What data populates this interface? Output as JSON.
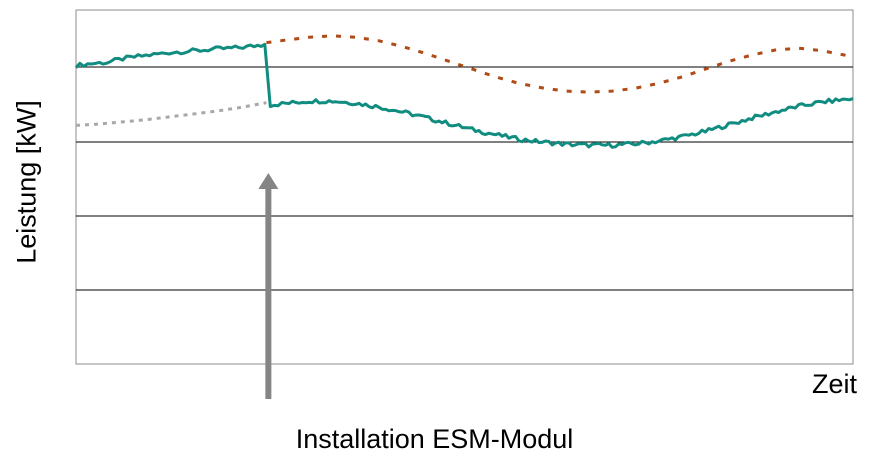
{
  "chart_data": {
    "type": "line",
    "title": "",
    "xlabel": "Zeit",
    "ylabel": "Leistung [kW]",
    "annotation": "Installation ESM-Modul",
    "annotation_x": 0.245,
    "grid": true,
    "xlim": [
      0,
      1
    ],
    "ylim": [
      0,
      1
    ],
    "colors": {
      "measured": "#118c80",
      "baseline_before": "#a8a8a8",
      "baseline_after": "#b04a16",
      "arrow": "#858585",
      "grid": "#000000"
    },
    "series": [
      {
        "key": "measured",
        "style": "solid",
        "points": [
          [
            0.0,
            0.843
          ],
          [
            0.02,
            0.849
          ],
          [
            0.04,
            0.852
          ],
          [
            0.06,
            0.862
          ],
          [
            0.08,
            0.869
          ],
          [
            0.1,
            0.874
          ],
          [
            0.12,
            0.88
          ],
          [
            0.14,
            0.883
          ],
          [
            0.16,
            0.886
          ],
          [
            0.18,
            0.89
          ],
          [
            0.2,
            0.892
          ],
          [
            0.22,
            0.896
          ],
          [
            0.243,
            0.903
          ],
          [
            0.25,
            0.732
          ],
          [
            0.27,
            0.736
          ],
          [
            0.3,
            0.743
          ],
          [
            0.33,
            0.743
          ],
          [
            0.36,
            0.737
          ],
          [
            0.39,
            0.726
          ],
          [
            0.42,
            0.712
          ],
          [
            0.45,
            0.696
          ],
          [
            0.48,
            0.679
          ],
          [
            0.51,
            0.662
          ],
          [
            0.54,
            0.648
          ],
          [
            0.57,
            0.635
          ],
          [
            0.6,
            0.627
          ],
          [
            0.63,
            0.621
          ],
          [
            0.66,
            0.618
          ],
          [
            0.69,
            0.618
          ],
          [
            0.72,
            0.622
          ],
          [
            0.75,
            0.63
          ],
          [
            0.78,
            0.642
          ],
          [
            0.81,
            0.657
          ],
          [
            0.84,
            0.676
          ],
          [
            0.87,
            0.695
          ],
          [
            0.9,
            0.712
          ],
          [
            0.93,
            0.728
          ],
          [
            0.96,
            0.74
          ],
          [
            1.0,
            0.75
          ]
        ]
      },
      {
        "key": "baseline_before",
        "style": "dotted",
        "points": [
          [
            0.0,
            0.674
          ],
          [
            0.03,
            0.678
          ],
          [
            0.06,
            0.684
          ],
          [
            0.09,
            0.69
          ],
          [
            0.12,
            0.698
          ],
          [
            0.15,
            0.706
          ],
          [
            0.18,
            0.714
          ],
          [
            0.21,
            0.724
          ],
          [
            0.245,
            0.738
          ]
        ]
      },
      {
        "key": "baseline_after",
        "style": "dashed",
        "points": [
          [
            0.245,
            0.908
          ],
          [
            0.27,
            0.915
          ],
          [
            0.3,
            0.923
          ],
          [
            0.33,
            0.927
          ],
          [
            0.36,
            0.923
          ],
          [
            0.39,
            0.913
          ],
          [
            0.42,
            0.897
          ],
          [
            0.45,
            0.877
          ],
          [
            0.48,
            0.855
          ],
          [
            0.51,
            0.833
          ],
          [
            0.54,
            0.811
          ],
          [
            0.57,
            0.793
          ],
          [
            0.6,
            0.78
          ],
          [
            0.63,
            0.771
          ],
          [
            0.66,
            0.768
          ],
          [
            0.69,
            0.771
          ],
          [
            0.72,
            0.779
          ],
          [
            0.75,
            0.793
          ],
          [
            0.78,
            0.811
          ],
          [
            0.81,
            0.833
          ],
          [
            0.84,
            0.855
          ],
          [
            0.87,
            0.873
          ],
          [
            0.9,
            0.887
          ],
          [
            0.93,
            0.892
          ],
          [
            0.96,
            0.885
          ],
          [
            1.0,
            0.868
          ]
        ]
      }
    ]
  }
}
